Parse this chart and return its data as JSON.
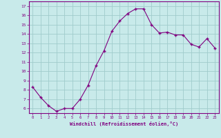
{
  "x": [
    0,
    1,
    2,
    3,
    4,
    5,
    6,
    7,
    8,
    9,
    10,
    11,
    12,
    13,
    14,
    15,
    16,
    17,
    18,
    19,
    20,
    21,
    22,
    23
  ],
  "y": [
    8.3,
    7.2,
    6.3,
    5.7,
    6.0,
    6.0,
    7.0,
    8.5,
    10.6,
    12.2,
    14.3,
    15.4,
    16.2,
    16.7,
    16.7,
    15.0,
    14.1,
    14.2,
    13.9,
    13.9,
    12.9,
    12.6,
    13.5,
    12.5
  ],
  "line_color": "#800080",
  "marker": "+",
  "bg_color": "#c8eaea",
  "grid_color": "#a0cccc",
  "xlabel": "Windchill (Refroidissement éolien,°C)",
  "ylabel_ticks": [
    6,
    7,
    8,
    9,
    10,
    11,
    12,
    13,
    14,
    15,
    16,
    17
  ],
  "xlim": [
    -0.5,
    23.5
  ],
  "ylim": [
    5.5,
    17.5
  ],
  "xticks": [
    0,
    1,
    2,
    3,
    4,
    5,
    6,
    7,
    8,
    9,
    10,
    11,
    12,
    13,
    14,
    15,
    16,
    17,
    18,
    19,
    20,
    21,
    22,
    23
  ],
  "tick_color": "#800080",
  "label_color": "#800080",
  "axis_color": "#800080",
  "spine_color": "#800080"
}
